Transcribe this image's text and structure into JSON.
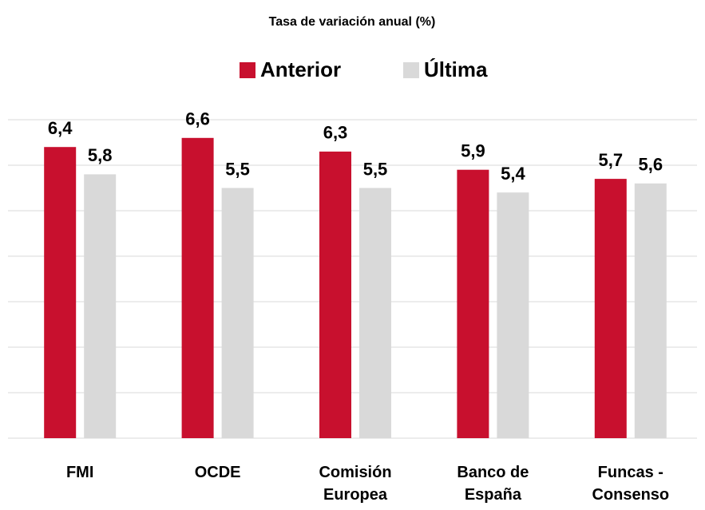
{
  "chart_data": {
    "type": "bar",
    "title": "Tasa de variación anual (%)",
    "categories": [
      "FMI",
      "OCDE",
      "Comisión Europea",
      "Banco de España",
      "Funcas - Consenso"
    ],
    "series": [
      {
        "name": "Anterior",
        "color": "#c8102e",
        "values": [
          6.4,
          6.6,
          6.3,
          5.9,
          5.7
        ],
        "value_labels": [
          "6,4",
          "6,6",
          "6,3",
          "5,9",
          "5,7"
        ]
      },
      {
        "name": "Última",
        "color": "#d9d9d9",
        "values": [
          5.8,
          5.5,
          5.5,
          5.4,
          5.6
        ],
        "value_labels": [
          "5,8",
          "5,5",
          "5,5",
          "5,4",
          "5,6"
        ]
      }
    ],
    "ylim": [
      0,
      7
    ],
    "yticks": [
      0,
      1,
      2,
      3,
      4,
      5,
      6,
      7
    ],
    "grid": true,
    "legend": "top"
  }
}
